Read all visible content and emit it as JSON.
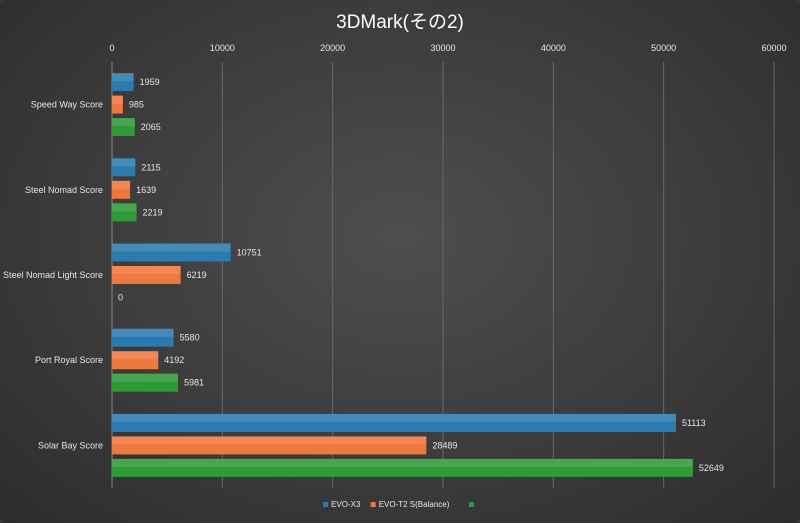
{
  "chart_data": {
    "type": "bar",
    "orientation": "horizontal",
    "title": "3DMark(その2)",
    "categories": [
      "Speed Way Score",
      "Steel Nomad Score",
      "Steel Nomad Light Score",
      "Port Royal Score",
      "Solar Bay Score"
    ],
    "series": [
      {
        "name": "EVO-X3",
        "color": "#2b7bb0",
        "values": [
          1959,
          2115,
          10751,
          5580,
          51113
        ]
      },
      {
        "name": "EVO-T2 S(Balance)",
        "color": "#f0783c",
        "values": [
          985,
          1639,
          6219,
          4192,
          28489
        ]
      },
      {
        "name": "",
        "color": "#2f9a3a",
        "values": [
          2065,
          2219,
          0,
          5981,
          52649
        ]
      }
    ],
    "xlim": [
      0,
      60000
    ],
    "ticks": [
      "0",
      "10000",
      "20000",
      "30000",
      "40000",
      "50000",
      "60000"
    ],
    "tick_values": [
      0,
      10000,
      20000,
      30000,
      40000,
      50000,
      60000
    ],
    "grid": true,
    "axis_position": "top",
    "legend_position": "bottom"
  }
}
